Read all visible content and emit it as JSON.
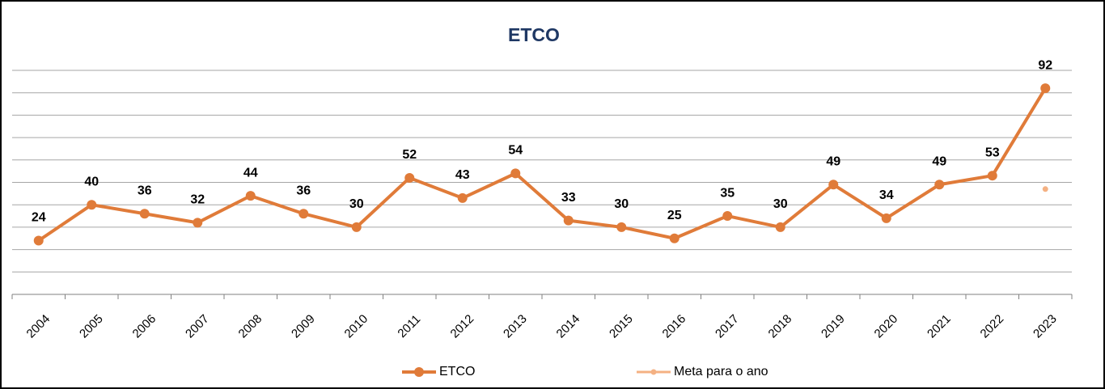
{
  "chart_data": {
    "type": "line",
    "title": "ETCO",
    "categories": [
      "2004",
      "2005",
      "2006",
      "2007",
      "2008",
      "2009",
      "2010",
      "2011",
      "2012",
      "2013",
      "2014",
      "2015",
      "2016",
      "2017",
      "2018",
      "2019",
      "2020",
      "2021",
      "2022",
      "2023"
    ],
    "series": [
      {
        "name": "ETCO",
        "color": "#e07b39",
        "values": [
          24,
          40,
          36,
          32,
          44,
          36,
          30,
          52,
          43,
          54,
          33,
          30,
          25,
          35,
          30,
          49,
          34,
          49,
          53,
          92
        ]
      },
      {
        "name": "Meta para o ano",
        "color": "#f4b183",
        "values": [
          null,
          null,
          null,
          null,
          null,
          null,
          null,
          null,
          null,
          null,
          null,
          null,
          null,
          null,
          null,
          null,
          null,
          null,
          null,
          47
        ]
      }
    ],
    "ylim": [
      0,
      100
    ],
    "yticks": [
      0,
      10,
      20,
      30,
      40,
      50,
      60,
      70,
      80,
      90,
      100
    ],
    "grid": true
  }
}
